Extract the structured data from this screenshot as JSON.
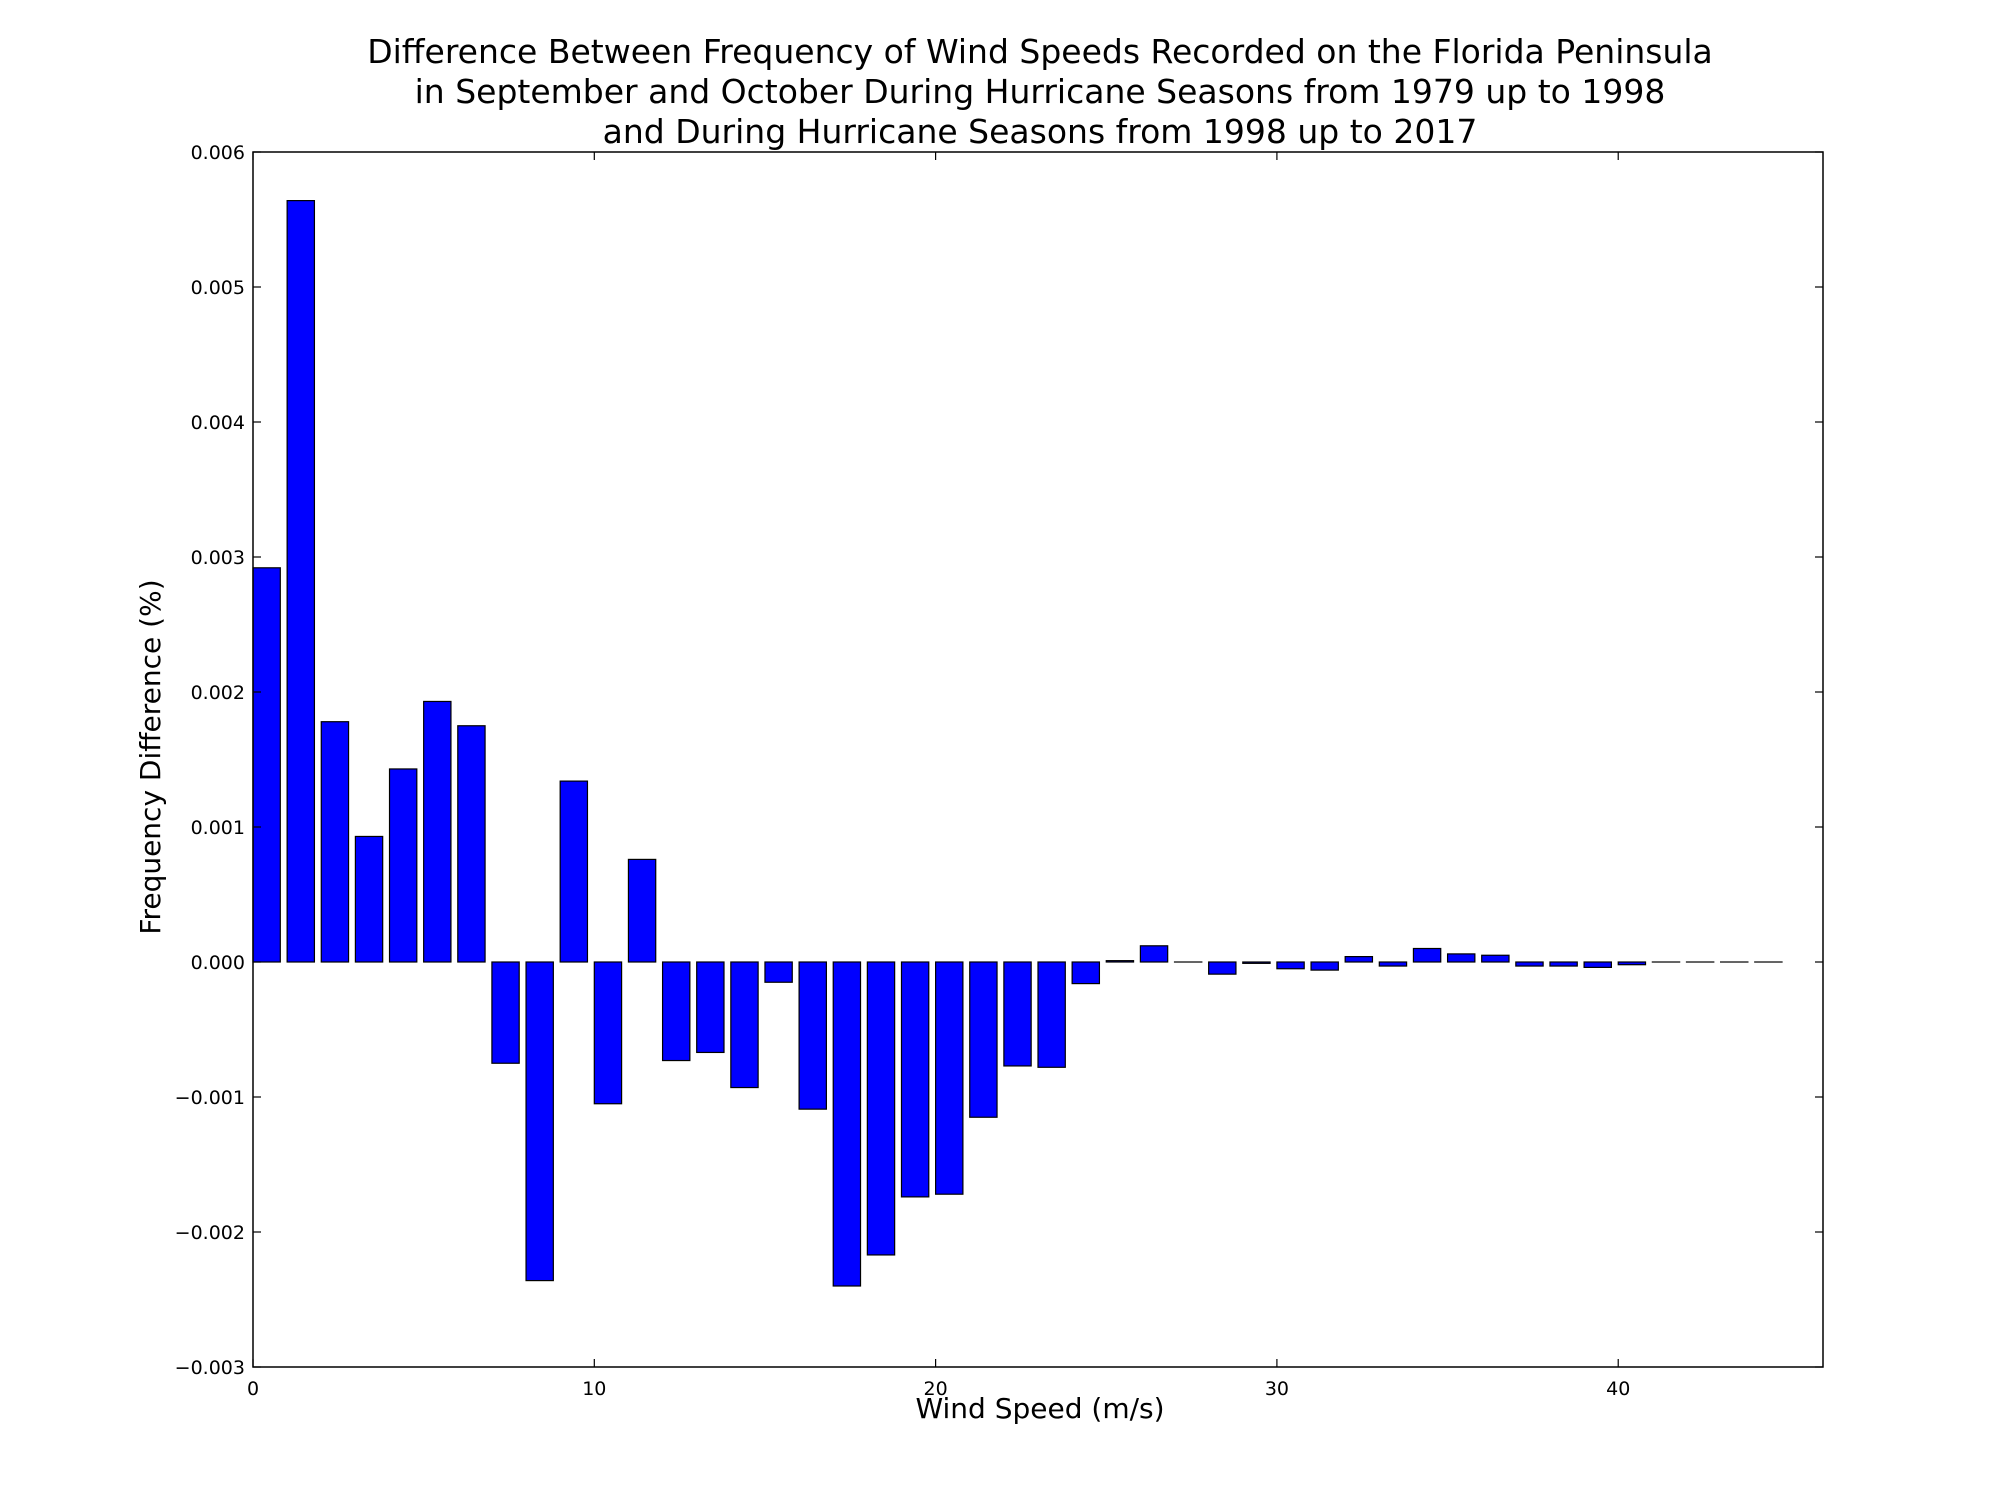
{
  "chart_data": {
    "type": "bar",
    "title_lines": [
      "Difference Between Frequency of Wind Speeds Recorded on the Florida Peninsula",
      "in September and October During Hurricane Seasons from 1979 up to 1998",
      "and During Hurricane Seasons from 1998 up to 2017"
    ],
    "xlabel": "Wind Speed (m/s)",
    "ylabel": "Frequency Difference (%)",
    "xlim": [
      0,
      46
    ],
    "ylim": [
      -0.003,
      0.006
    ],
    "x_ticks": [
      0,
      10,
      20,
      30,
      40
    ],
    "x_tick_labels": [
      "0",
      "10",
      "20",
      "30",
      "40"
    ],
    "y_ticks": [
      -0.003,
      -0.002,
      -0.001,
      0.0,
      0.001,
      0.002,
      0.003,
      0.004,
      0.005,
      0.006
    ],
    "y_tick_labels": [
      "−0.003",
      "−0.002",
      "−0.001",
      "0.000",
      "0.001",
      "0.002",
      "0.003",
      "0.004",
      "0.005",
      "0.006"
    ],
    "bar_color": "#0000ff",
    "bar_edge_color": "#000000",
    "bar_width": 0.8,
    "x": [
      0,
      1,
      2,
      3,
      4,
      5,
      6,
      7,
      8,
      9,
      10,
      11,
      12,
      13,
      14,
      15,
      16,
      17,
      18,
      19,
      20,
      21,
      22,
      23,
      24,
      25,
      26,
      27,
      28,
      29,
      30,
      31,
      32,
      33,
      34,
      35,
      36,
      37,
      38,
      39,
      40,
      41,
      42,
      43,
      44
    ],
    "values": [
      0.00292,
      0.00564,
      0.00178,
      0.00093,
      0.00143,
      0.00193,
      0.00175,
      -0.00075,
      -0.00236,
      0.00134,
      -0.00105,
      0.00076,
      -0.00073,
      -0.00067,
      -0.00093,
      -0.00015,
      -0.00109,
      -0.0024,
      -0.00217,
      -0.00174,
      -0.00172,
      -0.00115,
      -0.00077,
      -0.00078,
      -0.00016,
      1e-05,
      0.00012,
      0.0,
      -9e-05,
      -1e-05,
      -5e-05,
      -6e-05,
      4e-05,
      -3e-05,
      0.0001,
      6e-05,
      5e-05,
      -3e-05,
      -3e-05,
      -4e-05,
      -2e-05,
      0.0,
      0.0,
      0.0,
      0.0
    ],
    "grid": false
  }
}
